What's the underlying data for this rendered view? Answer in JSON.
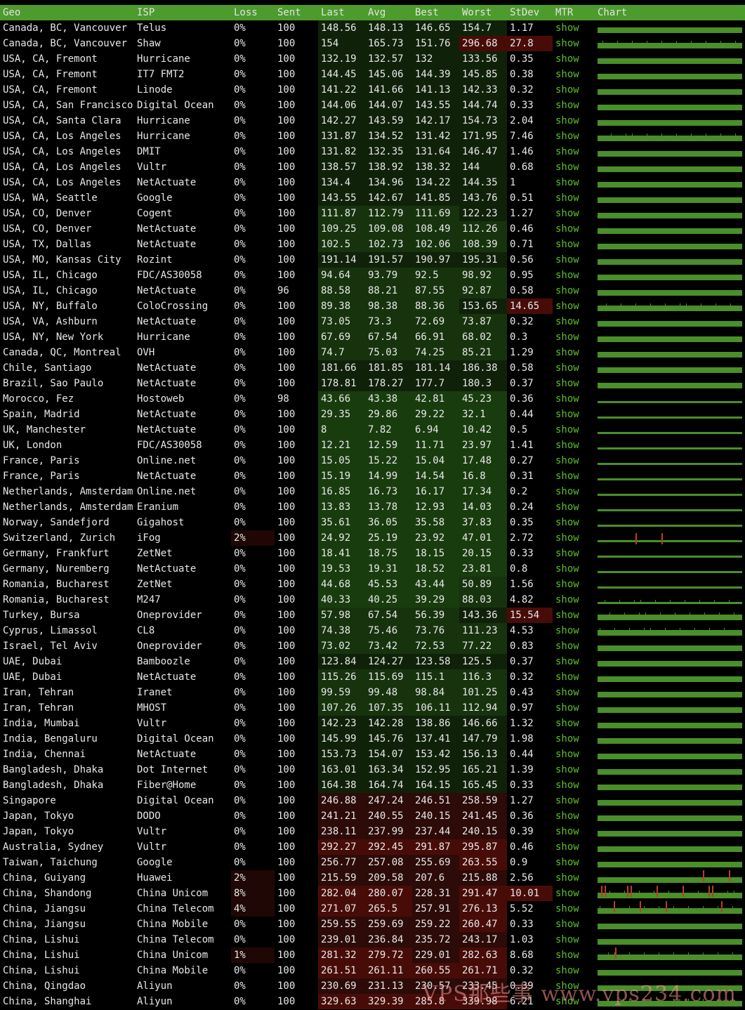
{
  "columns": [
    "Geo",
    "ISP",
    "Loss",
    "Sent",
    "Last",
    "Avg",
    "Best",
    "Worst",
    "StDev",
    "MTR",
    "Chart"
  ],
  "rows": [
    [
      "Canada, BC, Vancouver",
      "Telus",
      "0%",
      "100",
      "148.56",
      "148.13",
      "146.65",
      "154.7",
      "1.17",
      "show"
    ],
    [
      "Canada, BC, Vancouver",
      "Shaw",
      "0%",
      "100",
      "154",
      "165.73",
      "151.76",
      "296.68",
      "27.8",
      "show"
    ],
    [
      "USA, CA, Fremont",
      "Hurricane",
      "0%",
      "100",
      "132.19",
      "132.57",
      "132",
      "133.56",
      "0.35",
      "show"
    ],
    [
      "USA, CA, Fremont",
      "IT7 FMT2",
      "0%",
      "100",
      "144.45",
      "145.06",
      "144.39",
      "145.85",
      "0.38",
      "show"
    ],
    [
      "USA, CA, Fremont",
      "Linode",
      "0%",
      "100",
      "141.22",
      "141.66",
      "141.13",
      "142.33",
      "0.32",
      "show"
    ],
    [
      "USA, CA, San Francisco",
      "Digital Ocean",
      "0%",
      "100",
      "144.06",
      "144.07",
      "143.55",
      "144.74",
      "0.33",
      "show"
    ],
    [
      "USA, CA, Santa Clara",
      "Hurricane",
      "0%",
      "100",
      "142.27",
      "143.59",
      "142.17",
      "154.73",
      "2.04",
      "show"
    ],
    [
      "USA, CA, Los Angeles",
      "Hurricane",
      "0%",
      "100",
      "131.87",
      "134.52",
      "131.42",
      "171.95",
      "7.46",
      "show"
    ],
    [
      "USA, CA, Los Angeles",
      "DMIT",
      "0%",
      "100",
      "131.82",
      "132.35",
      "131.64",
      "146.47",
      "1.46",
      "show"
    ],
    [
      "USA, CA, Los Angeles",
      "Vultr",
      "0%",
      "100",
      "138.57",
      "138.92",
      "138.32",
      "144",
      "0.68",
      "show"
    ],
    [
      "USA, CA, Los Angeles",
      "NetActuate",
      "0%",
      "100",
      "134.4",
      "134.96",
      "134.22",
      "144.35",
      "1",
      "show"
    ],
    [
      "USA, WA, Seattle",
      "Google",
      "0%",
      "100",
      "143.55",
      "142.67",
      "141.85",
      "143.76",
      "0.51",
      "show"
    ],
    [
      "USA, CO, Denver",
      "Cogent",
      "0%",
      "100",
      "111.87",
      "112.79",
      "111.69",
      "122.23",
      "1.27",
      "show"
    ],
    [
      "USA, CO, Denver",
      "NetActuate",
      "0%",
      "100",
      "109.25",
      "109.08",
      "108.49",
      "112.26",
      "0.46",
      "show"
    ],
    [
      "USA, TX, Dallas",
      "NetActuate",
      "0%",
      "100",
      "102.5",
      "102.73",
      "102.06",
      "108.39",
      "0.71",
      "show"
    ],
    [
      "USA, MO, Kansas City",
      "Rozint",
      "0%",
      "100",
      "191.14",
      "191.57",
      "190.97",
      "195.31",
      "0.56",
      "show"
    ],
    [
      "USA, IL, Chicago",
      "FDC/AS30058",
      "0%",
      "100",
      "94.64",
      "93.79",
      "92.5",
      "98.92",
      "0.95",
      "show"
    ],
    [
      "USA, IL, Chicago",
      "NetActuate",
      "0%",
      "96",
      "88.58",
      "88.21",
      "87.55",
      "92.87",
      "0.58",
      "show"
    ],
    [
      "USA, NY, Buffalo",
      "ColoCrossing",
      "0%",
      "100",
      "89.38",
      "98.38",
      "88.36",
      "153.65",
      "14.65",
      "show"
    ],
    [
      "USA, VA, Ashburn",
      "NetActuate",
      "0%",
      "100",
      "73.05",
      "73.3",
      "72.69",
      "73.87",
      "0.32",
      "show"
    ],
    [
      "USA, NY, New York",
      "Hurricane",
      "0%",
      "100",
      "67.69",
      "67.54",
      "66.91",
      "68.02",
      "0.3",
      "show"
    ],
    [
      "Canada, QC, Montreal",
      "OVH",
      "0%",
      "100",
      "74.7",
      "75.03",
      "74.25",
      "85.21",
      "1.29",
      "show"
    ],
    [
      "Chile, Santiago",
      "NetActuate",
      "0%",
      "100",
      "181.66",
      "181.85",
      "181.14",
      "186.38",
      "0.58",
      "show"
    ],
    [
      "Brazil, Sao Paulo",
      "NetActuate",
      "0%",
      "100",
      "178.81",
      "178.27",
      "177.7",
      "180.3",
      "0.37",
      "show"
    ],
    [
      "Morocco, Fez",
      "Hostoweb",
      "0%",
      "98",
      "43.66",
      "43.38",
      "42.81",
      "45.23",
      "0.36",
      "show"
    ],
    [
      "Spain, Madrid",
      "NetActuate",
      "0%",
      "100",
      "29.35",
      "29.86",
      "29.22",
      "32.1",
      "0.44",
      "show"
    ],
    [
      "UK, Manchester",
      "NetActuate",
      "0%",
      "100",
      "8",
      "7.82",
      "6.94",
      "10.42",
      "0.5",
      "show"
    ],
    [
      "UK, London",
      "FDC/AS30058",
      "0%",
      "100",
      "12.21",
      "12.59",
      "11.71",
      "23.97",
      "1.41",
      "show"
    ],
    [
      "France, Paris",
      "Online.net",
      "0%",
      "100",
      "15.05",
      "15.22",
      "15.04",
      "17.48",
      "0.27",
      "show"
    ],
    [
      "France, Paris",
      "NetActuate",
      "0%",
      "100",
      "15.19",
      "14.99",
      "14.54",
      "16.8",
      "0.31",
      "show"
    ],
    [
      "Netherlands, Amsterdam",
      "Online.net",
      "0%",
      "100",
      "16.85",
      "16.73",
      "16.17",
      "17.34",
      "0.2",
      "show"
    ],
    [
      "Netherlands, Amsterdam",
      "Eranium",
      "0%",
      "100",
      "13.83",
      "13.78",
      "12.93",
      "14.03",
      "0.24",
      "show"
    ],
    [
      "Norway, Sandefjord",
      "Gigahost",
      "0%",
      "100",
      "35.61",
      "36.05",
      "35.58",
      "37.83",
      "0.35",
      "show"
    ],
    [
      "Switzerland, Zurich",
      "iFog",
      "2%",
      "100",
      "24.92",
      "25.19",
      "23.92",
      "47.01",
      "2.72",
      "show"
    ],
    [
      "Germany, Frankfurt",
      "ZetNet",
      "0%",
      "100",
      "18.41",
      "18.75",
      "18.15",
      "20.15",
      "0.33",
      "show"
    ],
    [
      "Germany, Nuremberg",
      "NetActuate",
      "0%",
      "100",
      "19.53",
      "19.31",
      "18.52",
      "23.81",
      "0.8",
      "show"
    ],
    [
      "Romania, Bucharest",
      "ZetNet",
      "0%",
      "100",
      "44.68",
      "45.53",
      "43.44",
      "50.89",
      "1.56",
      "show"
    ],
    [
      "Romania, Bucharest",
      "M247",
      "0%",
      "100",
      "40.33",
      "40.25",
      "39.29",
      "88.03",
      "4.82",
      "show"
    ],
    [
      "Turkey, Bursa",
      "Oneprovider",
      "0%",
      "100",
      "57.98",
      "67.54",
      "56.39",
      "143.36",
      "15.54",
      "show"
    ],
    [
      "Cyprus, Limassol",
      "CL8",
      "0%",
      "100",
      "74.38",
      "75.46",
      "73.76",
      "111.23",
      "4.53",
      "show"
    ],
    [
      "Israel, Tel Aviv",
      "Oneprovider",
      "0%",
      "100",
      "73.02",
      "73.42",
      "72.53",
      "77.22",
      "0.83",
      "show"
    ],
    [
      "UAE, Dubai",
      "Bamboozle",
      "0%",
      "100",
      "123.84",
      "124.27",
      "123.58",
      "125.5",
      "0.37",
      "show"
    ],
    [
      "UAE, Dubai",
      "NetActuate",
      "0%",
      "100",
      "115.26",
      "115.69",
      "115.1",
      "116.3",
      "0.32",
      "show"
    ],
    [
      "Iran, Tehran",
      "Iranet",
      "0%",
      "100",
      "99.59",
      "99.48",
      "98.84",
      "101.25",
      "0.43",
      "show"
    ],
    [
      "Iran, Tehran",
      "MHOST",
      "0%",
      "100",
      "107.26",
      "107.35",
      "106.11",
      "112.94",
      "0.97",
      "show"
    ],
    [
      "India, Mumbai",
      "Vultr",
      "0%",
      "100",
      "142.23",
      "142.28",
      "138.86",
      "146.66",
      "1.32",
      "show"
    ],
    [
      "India, Bengaluru",
      "Digital Ocean",
      "0%",
      "100",
      "145.99",
      "145.76",
      "137.41",
      "147.79",
      "1.98",
      "show"
    ],
    [
      "India, Chennai",
      "NetActuate",
      "0%",
      "100",
      "153.73",
      "154.07",
      "153.42",
      "156.13",
      "0.44",
      "show"
    ],
    [
      "Bangladesh, Dhaka",
      "Dot Internet",
      "0%",
      "100",
      "163.01",
      "163.34",
      "152.95",
      "165.21",
      "1.39",
      "show"
    ],
    [
      "Bangladesh, Dhaka",
      "Fiber@Home",
      "0%",
      "100",
      "164.38",
      "164.74",
      "164.15",
      "165.45",
      "0.33",
      "show"
    ],
    [
      "Singapore",
      "Digital Ocean",
      "0%",
      "100",
      "246.88",
      "247.24",
      "246.51",
      "258.59",
      "1.27",
      "show"
    ],
    [
      "Japan, Tokyo",
      "DODO",
      "0%",
      "100",
      "241.21",
      "240.55",
      "240.15",
      "241.45",
      "0.36",
      "show"
    ],
    [
      "Japan, Tokyo",
      "Vultr",
      "0%",
      "100",
      "238.11",
      "237.99",
      "237.44",
      "240.15",
      "0.39",
      "show"
    ],
    [
      "Australia, Sydney",
      "Vultr",
      "0%",
      "100",
      "292.27",
      "292.45",
      "291.87",
      "295.87",
      "0.46",
      "show"
    ],
    [
      "Taiwan, Taichung",
      "Google",
      "0%",
      "100",
      "256.77",
      "257.08",
      "255.69",
      "263.55",
      "0.9",
      "show"
    ],
    [
      "China, Guiyang",
      "Huawei",
      "2%",
      "100",
      "215.59",
      "209.58",
      "207.6",
      "215.88",
      "2.56",
      "show"
    ],
    [
      "China, Shandong",
      "China Unicom",
      "8%",
      "100",
      "282.04",
      "280.07",
      "228.31",
      "291.47",
      "10.01",
      "show"
    ],
    [
      "China, Jiangsu",
      "China Telecom",
      "4%",
      "100",
      "271.07",
      "265.5",
      "257.91",
      "276.13",
      "5.52",
      "show"
    ],
    [
      "China, Jiangsu",
      "China Mobile",
      "0%",
      "100",
      "259.55",
      "259.69",
      "259.22",
      "260.47",
      "0.33",
      "show"
    ],
    [
      "China, Lishui",
      "China Telecom",
      "0%",
      "100",
      "239.01",
      "236.84",
      "235.72",
      "243.17",
      "1.03",
      "show"
    ],
    [
      "China, Lishui",
      "China Unicom",
      "1%",
      "100",
      "281.32",
      "279.72",
      "229.01",
      "282.63",
      "8.68",
      "show"
    ],
    [
      "China, Lishui",
      "China Mobile",
      "0%",
      "100",
      "261.51",
      "261.11",
      "260.55",
      "261.71",
      "0.32",
      "show"
    ],
    [
      "China, Qingdao",
      "Aliyun",
      "0%",
      "100",
      "230.69",
      "231.13",
      "230.57",
      "233.45",
      "0.39",
      "show"
    ],
    [
      "China, Shanghai",
      "Aliyun",
      "0%",
      "100",
      "329.63",
      "329.39",
      "285.8",
      "339.98",
      "6.21",
      "show"
    ]
  ],
  "colors": {
    "header": "#4c9b2c",
    "mtr_link": "#5cbf2a",
    "chart_bar": "#4a8f2a",
    "loss_spike": "#c0392b"
  },
  "watermark": "VPS那些事 www.vps234.com"
}
